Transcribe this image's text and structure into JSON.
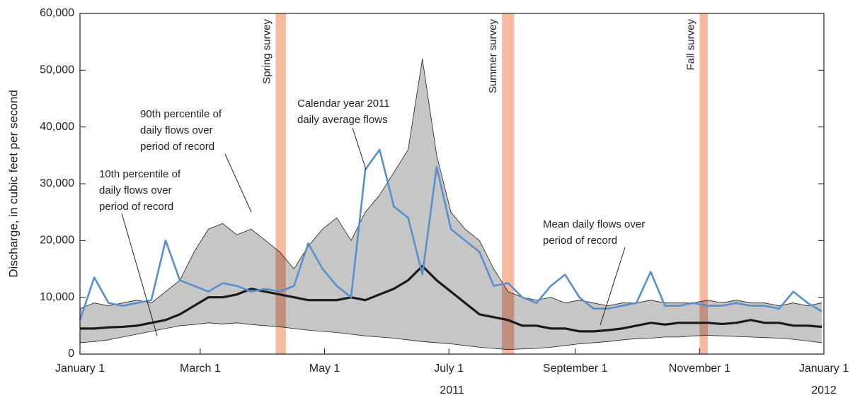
{
  "chart_data": {
    "type": "line",
    "ylabel": "Discharge, in cubic feet per second",
    "xlim": [
      0,
      365
    ],
    "xticks": [
      {
        "value": 0,
        "label": "January 1"
      },
      {
        "value": 59,
        "label": "March 1"
      },
      {
        "value": 120,
        "label": "May 1"
      },
      {
        "value": 181,
        "label": "July 1"
      },
      {
        "value": 243,
        "label": "September 1"
      },
      {
        "value": 304,
        "label": "November 1"
      },
      {
        "value": 365,
        "label": "January 1"
      }
    ],
    "year_labels": [
      "2011",
      "2012"
    ],
    "ylim": [
      0,
      60000
    ],
    "yticks": [
      0,
      {
        "value": 10000,
        "label": "10,000"
      },
      {
        "value": 20000,
        "label": "20,000"
      },
      {
        "value": 30000,
        "label": "30,000"
      },
      {
        "value": 40000,
        "label": "40,000"
      },
      {
        "value": 50000,
        "label": "50,000"
      },
      {
        "value": 60000,
        "label": "60,000"
      }
    ],
    "band_color": "#c6c6c6",
    "x": [
      0,
      7,
      14,
      21,
      28,
      35,
      42,
      49,
      56,
      63,
      70,
      77,
      84,
      91,
      98,
      105,
      112,
      119,
      126,
      133,
      140,
      147,
      154,
      161,
      168,
      175,
      182,
      189,
      196,
      203,
      210,
      217,
      224,
      231,
      238,
      245,
      252,
      259,
      266,
      273,
      280,
      287,
      294,
      301,
      308,
      315,
      322,
      329,
      336,
      343,
      350,
      357,
      364
    ],
    "series": [
      {
        "color": "#231f20",
        "values": [
          2000,
          2200,
          2500,
          3000,
          3500,
          4000,
          4500,
          5000,
          5200,
          5500,
          5300,
          5500,
          5200,
          5000,
          4800,
          4500,
          4200,
          4000,
          3800,
          3500,
          3200,
          3000,
          2800,
          2500,
          2200,
          2000,
          1800,
          1500,
          1200,
          1000,
          800,
          900,
          1000,
          1200,
          1500,
          1800,
          2000,
          2200,
          2500,
          2700,
          2800,
          3000,
          3000,
          3200,
          3300,
          3200,
          3100,
          3000,
          2900,
          2800,
          2600,
          2300,
          2000
        ]
      },
      {
        "color": "#231f20",
        "values": [
          8000,
          9000,
          8500,
          9000,
          9500,
          9000,
          11000,
          13000,
          18000,
          22000,
          23000,
          21000,
          22000,
          20000,
          18000,
          15000,
          19000,
          22000,
          24000,
          20000,
          25000,
          28000,
          32000,
          36000,
          52000,
          35000,
          25000,
          22000,
          20000,
          15000,
          11000,
          10000,
          9500,
          10000,
          9000,
          9500,
          9000,
          8500,
          9000,
          9000,
          9500,
          9000,
          9000,
          9000,
          9500,
          9000,
          9500,
          9000,
          9000,
          8500,
          9000,
          8500,
          9000
        ]
      },
      {
        "color": "#5b8fcb",
        "values": [
          6000,
          13500,
          9000,
          8500,
          9000,
          9500,
          20000,
          13000,
          12000,
          11000,
          12500,
          12000,
          11000,
          11500,
          11000,
          12000,
          19500,
          15000,
          12000,
          10000,
          32500,
          36000,
          26000,
          24000,
          14000,
          33000,
          22000,
          20000,
          18000,
          12000,
          12500,
          10000,
          9000,
          12000,
          14000,
          10000,
          8000,
          8000,
          8500,
          9000,
          14500,
          8500,
          8500,
          9000,
          8500,
          8500,
          9000,
          8500,
          8500,
          8000,
          11000,
          9000,
          7500
        ]
      },
      {
        "color": "#1a1a1a",
        "values": [
          4500,
          4500,
          4700,
          4800,
          5000,
          5500,
          6000,
          7000,
          8500,
          10000,
          10000,
          10500,
          11500,
          11000,
          10500,
          10000,
          9500,
          9500,
          9500,
          10000,
          9500,
          10500,
          11500,
          13000,
          15500,
          13000,
          11000,
          9000,
          7000,
          6500,
          6000,
          5000,
          5000,
          4500,
          4500,
          4000,
          4000,
          4200,
          4500,
          5000,
          5500,
          5200,
          5500,
          5500,
          5500,
          5300,
          5500,
          6000,
          5500,
          5500,
          5000,
          5000,
          4800
        ]
      }
    ],
    "survey_color": "#f9b8a0",
    "surveys": [
      {
        "label": "Spring survey",
        "x": [
          96,
          101
        ]
      },
      {
        "label": "Summer survey",
        "x": [
          207,
          213
        ]
      },
      {
        "label": "Fall survey",
        "x": [
          304,
          308
        ]
      }
    ],
    "annotations": [
      {
        "lines": [
          "10th percentile of",
          "daily flows over",
          "period of record"
        ]
      },
      {
        "lines": [
          "90th percentile of",
          "daily flows over",
          "period of record"
        ]
      },
      {
        "lines": [
          "Calendar year 2011",
          "daily average flows"
        ]
      },
      {
        "lines": [
          "Mean daily flows over",
          "period of record"
        ]
      }
    ]
  }
}
